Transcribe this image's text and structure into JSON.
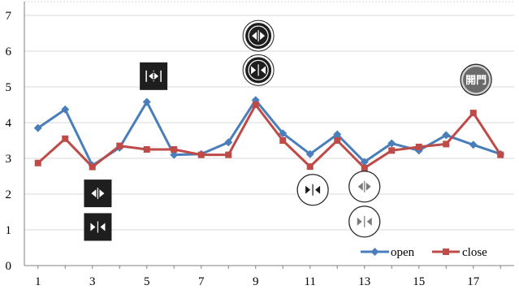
{
  "chart_data": {
    "type": "line",
    "x": [
      1,
      2,
      3,
      4,
      5,
      6,
      7,
      8,
      9,
      10,
      11,
      12,
      13,
      14,
      15,
      16,
      17,
      18
    ],
    "x_ticks": [
      "1",
      "3",
      "5",
      "7",
      "9",
      "11",
      "13",
      "15",
      "17"
    ],
    "y_ticks": [
      "0",
      "1",
      "2",
      "3",
      "4",
      "5",
      "6",
      "7"
    ],
    "ylim": [
      0,
      7
    ],
    "xlim": [
      0.5,
      18.5
    ],
    "grid": "horizontal",
    "legend_position": "bottom-right",
    "series": [
      {
        "name": "open",
        "color": "#4a7ebb",
        "marker": "diamond",
        "values": [
          3.85,
          4.37,
          2.8,
          3.3,
          4.58,
          3.1,
          3.12,
          3.45,
          4.63,
          3.7,
          3.12,
          3.67,
          2.9,
          3.42,
          3.22,
          3.65,
          3.38,
          3.12
        ]
      },
      {
        "name": "close",
        "color": "#be4b48",
        "marker": "square",
        "values": [
          2.87,
          3.55,
          2.76,
          3.35,
          3.25,
          3.25,
          3.1,
          3.1,
          4.5,
          3.5,
          2.77,
          3.5,
          2.73,
          3.22,
          3.32,
          3.4,
          4.27,
          3.1
        ]
      }
    ],
    "annotations": [
      {
        "icon": "open-arrows-icon",
        "style": "square-dark",
        "x": 3.2,
        "y": 2.02
      },
      {
        "icon": "close-arrows-icon",
        "style": "square-dark",
        "x": 3.2,
        "y": 1.08
      },
      {
        "icon": "expand-arrows-icon",
        "style": "square-dark",
        "x": 5.25,
        "y": 5.3
      },
      {
        "icon": "open-arrows-icon",
        "style": "circle-dark",
        "x": 9.1,
        "y": 6.43
      },
      {
        "icon": "close-arrows-icon",
        "style": "circle-dark",
        "x": 9.1,
        "y": 5.47
      },
      {
        "icon": "close-arrows-icon",
        "style": "circle-light",
        "x": 11.1,
        "y": 2.12
      },
      {
        "icon": "open-arrows-icon",
        "style": "circle-light",
        "x": 13.0,
        "y": 2.21
      },
      {
        "icon": "close-arrows-icon",
        "style": "circle-light",
        "x": 13.0,
        "y": 1.23
      },
      {
        "icon": "open-button-kanji-icon",
        "style": "circle-grey",
        "x": 17.1,
        "y": 5.2,
        "text": "開門"
      }
    ]
  }
}
